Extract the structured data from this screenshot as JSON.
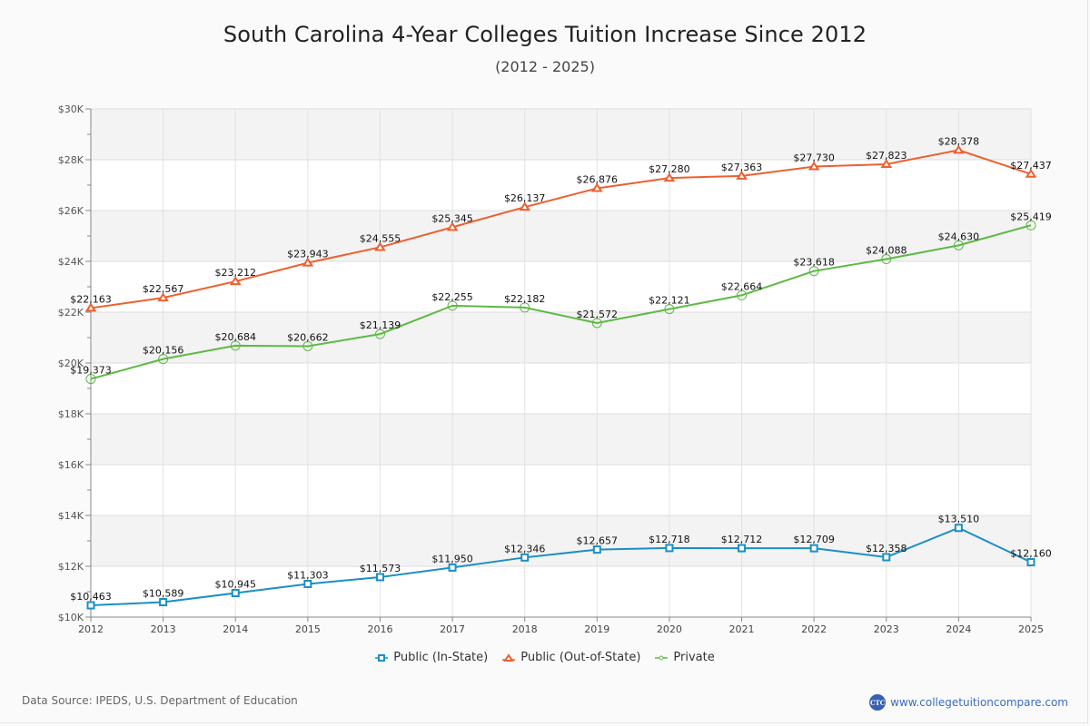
{
  "chart_data": {
    "type": "line",
    "title": "South Carolina 4-Year Colleges Tuition Increase Since 2012",
    "subtitle": "(2012 - 2025)",
    "xlabel": "",
    "ylabel": "",
    "x": [
      "2012",
      "2013",
      "2014",
      "2015",
      "2016",
      "2017",
      "2018",
      "2019",
      "2020",
      "2021",
      "2022",
      "2023",
      "2024",
      "2025"
    ],
    "ylim": [
      10000,
      30000
    ],
    "y_ticks": [
      10000,
      12000,
      14000,
      16000,
      18000,
      20000,
      22000,
      24000,
      26000,
      28000,
      30000
    ],
    "y_tick_labels": [
      "$10K",
      "$12K",
      "$14K",
      "$16K",
      "$18K",
      "$20K",
      "$22K",
      "$24K",
      "$26K",
      "$28K",
      "$30K"
    ],
    "grid": true,
    "legend_position": "bottom-center",
    "series": [
      {
        "name": "Public (In-State)",
        "color": "#1a8fc6",
        "marker": "square",
        "values": [
          10463,
          10589,
          10945,
          11303,
          11573,
          11950,
          12346,
          12657,
          12718,
          12712,
          12709,
          12358,
          13510,
          12160
        ],
        "labels": [
          "$10,463",
          "$10,589",
          "$10,945",
          "$11,303",
          "$11,573",
          "$11,950",
          "$12,346",
          "$12,657",
          "$12,718",
          "$12,712",
          "$12,709",
          "$12,358",
          "$13,510",
          "$12,160"
        ]
      },
      {
        "name": "Public (Out-of-State)",
        "color": "#ee5f2f",
        "marker": "triangle",
        "values": [
          22163,
          22567,
          23212,
          23943,
          24555,
          25345,
          26137,
          26876,
          27280,
          27363,
          27730,
          27823,
          28378,
          27437
        ],
        "labels": [
          "$22,163",
          "$22,567",
          "$23,212",
          "$23,943",
          "$24,555",
          "$25,345",
          "$26,137",
          "$26,876",
          "$27,280",
          "$27,363",
          "$27,730",
          "$27,823",
          "$28,378",
          "$27,437"
        ]
      },
      {
        "name": "Private",
        "color": "#5db944",
        "marker": "circle",
        "values": [
          19373,
          20156,
          20684,
          20662,
          21139,
          22255,
          22182,
          21572,
          22121,
          22664,
          23618,
          24088,
          24630,
          25419
        ],
        "labels": [
          "$19,373",
          "$20,156",
          "$20,684",
          "$20,662",
          "$21,139",
          "$22,255",
          "$22,182",
          "$21,572",
          "$22,121",
          "$22,664",
          "$23,618",
          "$24,088",
          "$24,630",
          "$25,419"
        ]
      }
    ]
  },
  "footer": {
    "data_source": "Data Source: IPEDS, U.S. Department of Education",
    "brand_logo_text": "CTC",
    "brand_url": "www.collegetuitioncompare.com"
  },
  "icons": {
    "brand_logo": "ctc-logo-icon",
    "legend_markers": [
      "square-marker-icon",
      "triangle-marker-icon",
      "circle-marker-icon"
    ]
  }
}
